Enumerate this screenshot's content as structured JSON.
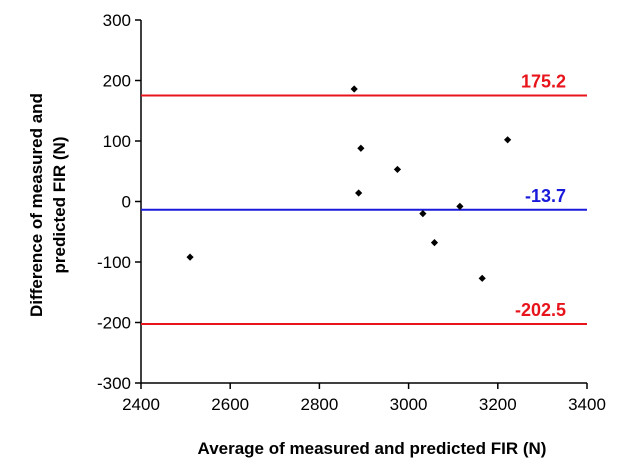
{
  "chart_data": {
    "type": "scatter",
    "title": "",
    "xlabel": "Average of measured and predicted FIR (N)",
    "ylabel": "Difference of measured and predicted FIR (N)",
    "xlim": [
      2400,
      3400
    ],
    "ylim": [
      -300,
      300
    ],
    "x_ticks": [
      2400,
      2600,
      2800,
      3000,
      3200,
      3400
    ],
    "y_ticks": [
      -300,
      -200,
      -100,
      0,
      100,
      200,
      300
    ],
    "grid": false,
    "legend": "none",
    "series": [
      {
        "marker": "diamond",
        "color": "#000000",
        "points": [
          {
            "x": 2510,
            "y": -92
          },
          {
            "x": 2878,
            "y": 186
          },
          {
            "x": 2893,
            "y": 88
          },
          {
            "x": 2888,
            "y": 14
          },
          {
            "x": 2975,
            "y": 53
          },
          {
            "x": 3032,
            "y": -20
          },
          {
            "x": 3058,
            "y": -68
          },
          {
            "x": 3115,
            "y": -8
          },
          {
            "x": 3165,
            "y": -127
          },
          {
            "x": 3222,
            "y": 102
          }
        ]
      }
    ],
    "reference_lines": [
      {
        "value": 175.2,
        "label": "175.2",
        "color": "#e8141b"
      },
      {
        "value": -13.7,
        "label": "-13.7",
        "color": "#1a1adb"
      },
      {
        "value": -202.5,
        "label": "-202.5",
        "color": "#e8141b"
      }
    ]
  }
}
